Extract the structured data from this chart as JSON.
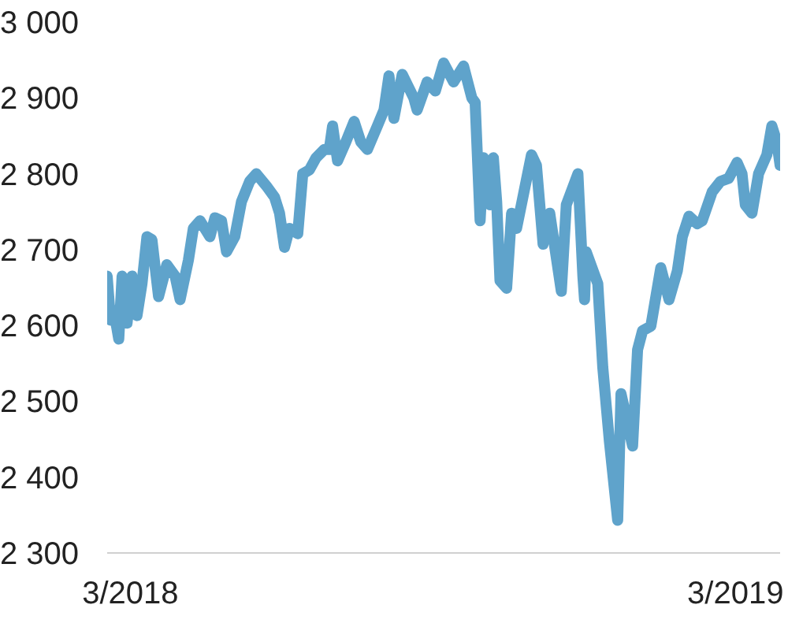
{
  "chart_data": {
    "type": "line",
    "x": [
      "2018-02-15",
      "2018-02-17",
      "2018-02-19",
      "2018-02-22",
      "2018-02-24",
      "2018-02-27",
      "2018-03-02",
      "2018-03-05",
      "2018-03-08",
      "2018-03-11",
      "2018-03-14",
      "2018-03-18",
      "2018-03-23",
      "2018-03-28",
      "2018-03-31",
      "2018-04-05",
      "2018-04-08",
      "2018-04-12",
      "2018-04-18",
      "2018-04-21",
      "2018-04-25",
      "2018-04-28",
      "2018-05-03",
      "2018-05-07",
      "2018-05-12",
      "2018-05-16",
      "2018-05-22",
      "2018-05-27",
      "2018-05-30",
      "2018-06-02",
      "2018-06-05",
      "2018-06-10",
      "2018-06-13",
      "2018-06-17",
      "2018-06-21",
      "2018-06-26",
      "2018-06-29",
      "2018-07-01",
      "2018-07-04",
      "2018-07-09",
      "2018-07-14",
      "2018-07-18",
      "2018-07-22",
      "2018-07-28",
      "2018-08-01",
      "2018-08-04",
      "2018-08-07",
      "2018-08-12",
      "2018-08-19",
      "2018-08-21",
      "2018-08-27",
      "2018-09-01",
      "2018-09-06",
      "2018-09-12",
      "2018-09-18",
      "2018-09-23",
      "2018-09-25",
      "2018-09-28",
      "2018-09-30",
      "2018-10-04",
      "2018-10-06",
      "2018-10-08",
      "2018-10-10",
      "2018-10-14",
      "2018-10-17",
      "2018-10-20",
      "2018-10-29",
      "2018-11-01",
      "2018-11-05",
      "2018-11-09",
      "2018-11-16",
      "2018-11-19",
      "2018-11-26",
      "2018-11-29",
      "2018-11-30",
      "2018-12-01",
      "2018-12-08",
      "2018-12-11",
      "2018-12-15",
      "2018-12-20",
      "2018-12-22",
      "2018-12-29",
      "2019-01-01",
      "2019-01-04",
      "2019-01-09",
      "2019-01-15",
      "2019-01-20",
      "2019-01-25",
      "2019-01-28",
      "2019-02-01",
      "2019-02-06",
      "2019-02-09",
      "2019-02-15",
      "2019-02-20",
      "2019-02-25",
      "2019-03-02",
      "2019-03-05",
      "2019-03-07",
      "2019-03-11",
      "2019-03-15",
      "2019-03-20",
      "2019-03-23",
      "2019-03-26",
      "2019-03-28"
    ],
    "series": [
      {
        "color": "#5fa3cb",
        "values": [
          2665,
          2607,
          2620,
          2582,
          2665,
          2603,
          2665,
          2613,
          2655,
          2717,
          2713,
          2638,
          2680,
          2665,
          2634,
          2686,
          2728,
          2738,
          2717,
          2742,
          2738,
          2697,
          2717,
          2763,
          2790,
          2800,
          2784,
          2769,
          2748,
          2703,
          2728,
          2721,
          2800,
          2805,
          2821,
          2832,
          2832,
          2863,
          2817,
          2842,
          2869,
          2842,
          2832,
          2863,
          2884,
          2929,
          2873,
          2931,
          2900,
          2884,
          2921,
          2909,
          2946,
          2921,
          2942,
          2900,
          2894,
          2738,
          2821,
          2759,
          2821,
          2763,
          2659,
          2649,
          2748,
          2728,
          2825,
          2811,
          2707,
          2748,
          2645,
          2759,
          2800,
          2665,
          2634,
          2697,
          2655,
          2545,
          2447,
          2343,
          2510,
          2441,
          2568,
          2593,
          2599,
          2676,
          2634,
          2672,
          2717,
          2744,
          2734,
          2738,
          2776,
          2790,
          2794,
          2815,
          2800,
          2759,
          2748,
          2800,
          2825,
          2863,
          2842,
          2811
        ]
      }
    ],
    "xlim": [
      "2018-02-15",
      "2019-03-28"
    ],
    "xticks": [
      {
        "value": "2018-03-01",
        "label": "3/2018"
      },
      {
        "value": "2019-03-01",
        "label": "3/2019"
      }
    ],
    "ylim": [
      2300,
      3000
    ],
    "yticks": [
      {
        "value": 2300,
        "label": "2 300"
      },
      {
        "value": 2400,
        "label": "2 400"
      },
      {
        "value": 2500,
        "label": "2 500"
      },
      {
        "value": 2600,
        "label": "2 600"
      },
      {
        "value": 2700,
        "label": "2 700"
      },
      {
        "value": 2800,
        "label": "2 800"
      },
      {
        "value": 2900,
        "label": "2 900"
      },
      {
        "value": 3000,
        "label": "3 000"
      }
    ],
    "line_style": "solid"
  }
}
